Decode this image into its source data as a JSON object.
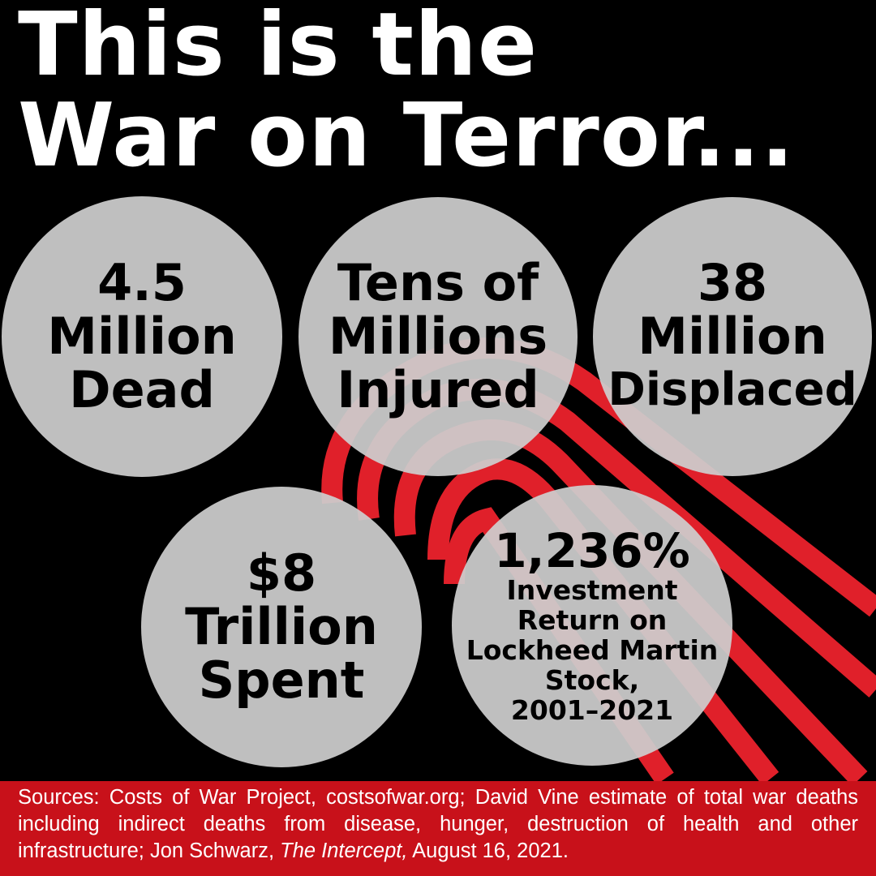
{
  "title": {
    "line1": "This is the",
    "line2": "War on Terror..."
  },
  "stats": [
    {
      "lines": [
        "4.5",
        "Million",
        "Dead"
      ]
    },
    {
      "lines": [
        "Tens of",
        "Millions",
        "Injured"
      ]
    },
    {
      "lines": [
        "38",
        "Million",
        "Displaced"
      ]
    },
    {
      "lines": [
        "$8",
        "Trillion",
        "Spent"
      ]
    },
    {
      "headline": "1,236%",
      "lines": [
        "Investment",
        "Return on",
        "Lockheed Martin",
        "Stock,",
        "2001–2021"
      ]
    }
  ],
  "sources": {
    "prefix": "Sources: Costs of War Project, costsofwar.org; David Vine estimate of total war deaths including indirect deaths from disease, hunger, destruction of health and other infrastructure; Jon Schwarz, ",
    "publication": "The Intercept,",
    "suffix": " August 16, 2021."
  },
  "colors": {
    "background": "#000000",
    "accent_red": "#c8111a",
    "circle": "#cdcdcd"
  }
}
